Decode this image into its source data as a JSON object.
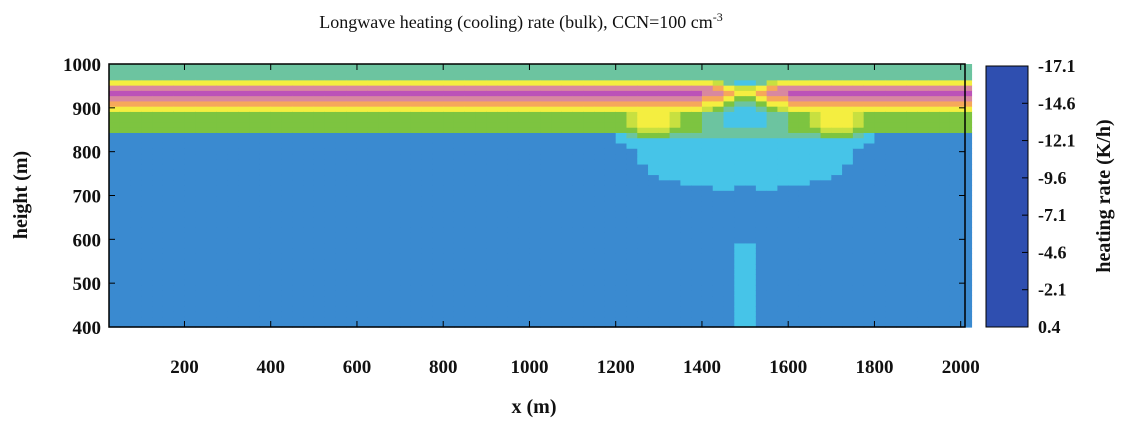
{
  "chart_data": {
    "type": "heatmap",
    "title": "Longwave heating (cooling) rate (bulk), CCN=100 cm",
    "title_superscript": "-3",
    "xlabel": "x (m)",
    "ylabel": "height (m)",
    "colorbar_label": "heating rate (K/h)",
    "xlim": [
      25,
      2010
    ],
    "ylim": [
      400,
      1000
    ],
    "x_ticks": [
      200,
      400,
      600,
      800,
      1000,
      1200,
      1400,
      1600,
      1800,
      2000
    ],
    "x_tick_labels": [
      "200",
      "400",
      "600",
      "800",
      "1000",
      "1200",
      "1400",
      "1600",
      "1800",
      "2000"
    ],
    "y_ticks": [
      400,
      500,
      600,
      700,
      800,
      900,
      1000
    ],
    "y_tick_labels": [
      "400",
      "500",
      "600",
      "700",
      "800",
      "900",
      "1000"
    ],
    "colorbar_range": [
      -17.1,
      0.4
    ],
    "colorbar_ticks": [
      0.4,
      -2.1,
      -4.6,
      -7.1,
      -9.6,
      -12.1,
      -14.6,
      -17.1
    ],
    "colorbar_tick_labels": [
      "0.4",
      "-2.1",
      "-4.6",
      "-7.1",
      "-9.6",
      "-12.1",
      "-14.6",
      "-17.1"
    ],
    "colorscale": [
      {
        "value": 0.4,
        "color": "#2f4fb0"
      },
      {
        "value": -0.3,
        "color": "#3a8ad0"
      },
      {
        "value": -0.8,
        "color": "#46c4e8"
      },
      {
        "value": -1.2,
        "color": "#6cc4a0"
      },
      {
        "value": -1.6,
        "color": "#7dc440"
      },
      {
        "value": -2.1,
        "color": "#c8e040"
      },
      {
        "value": -2.8,
        "color": "#f4ee40"
      },
      {
        "value": -4.6,
        "color": "#f6a85a"
      },
      {
        "value": -7.1,
        "color": "#d888a0"
      },
      {
        "value": -9.6,
        "color": "#bc52b8"
      },
      {
        "value": -12.1,
        "color": "#d050a8"
      },
      {
        "value": -14.6,
        "color": "#ee3c98"
      },
      {
        "value": -17.1,
        "color": "#ee2828"
      }
    ],
    "grid": false
  }
}
